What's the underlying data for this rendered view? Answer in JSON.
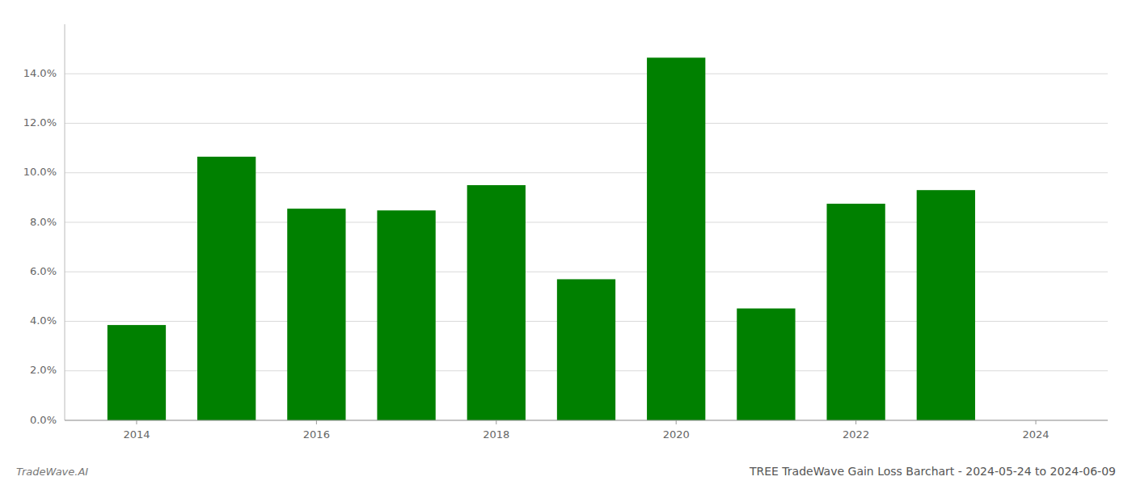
{
  "chart_data": {
    "type": "bar",
    "title": "TREE TradeWave Gain Loss Barchart - 2024-05-24 to 2024-06-09",
    "annotations": [
      "TradeWave.AI"
    ],
    "x": [
      2014,
      2015,
      2016,
      2017,
      2018,
      2019,
      2020,
      2021,
      2022,
      2023
    ],
    "values": [
      0.0385,
      0.1065,
      0.0855,
      0.0848,
      0.095,
      0.057,
      0.1465,
      0.0452,
      0.0875,
      0.093
    ],
    "color": "#008000",
    "xlim": [
      2013.2,
      2024.8
    ],
    "xticks": [
      2014,
      2016,
      2018,
      2020,
      2022,
      2024
    ],
    "ylim": [
      0,
      0.16
    ],
    "yticks": [
      {
        "value": 0.0,
        "label": "0.0%"
      },
      {
        "value": 0.02,
        "label": "2.0%"
      },
      {
        "value": 0.04,
        "label": "4.0%"
      },
      {
        "value": 0.06,
        "label": "6.0%"
      },
      {
        "value": 0.08,
        "label": "8.0%"
      },
      {
        "value": 0.1,
        "label": "10.0%"
      },
      {
        "value": 0.12,
        "label": "12.0%"
      },
      {
        "value": 0.14,
        "label": "14.0%"
      }
    ],
    "grid": true
  }
}
